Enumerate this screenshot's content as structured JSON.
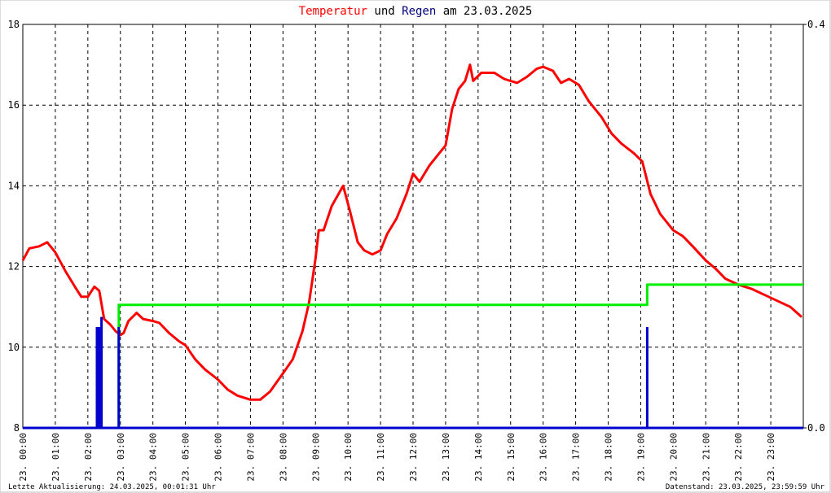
{
  "chart_data": {
    "type": "line",
    "title_parts": [
      {
        "text": "Temperatur",
        "color": "#ff0000"
      },
      {
        "text": "und",
        "color": "#000000"
      },
      {
        "text": "Regen",
        "color": "#000080"
      },
      {
        "text": "am 23.03.2025",
        "color": "#000000"
      }
    ],
    "footer_left": "Letzte Aktualisierung: 24.03.2025, 00:01:31 Uhr",
    "footer_right": "Datenstand: 23.03.2025, 23:59:59 Uhr",
    "xlim": [
      0,
      24
    ],
    "xticks": [
      {
        "value": 0,
        "label": "23. 00:00"
      },
      {
        "value": 1,
        "label": "23. 01:00"
      },
      {
        "value": 2,
        "label": "23. 02:00"
      },
      {
        "value": 3,
        "label": "23. 03:00"
      },
      {
        "value": 4,
        "label": "23. 04:00"
      },
      {
        "value": 5,
        "label": "23. 05:00"
      },
      {
        "value": 6,
        "label": "23. 06:00"
      },
      {
        "value": 7,
        "label": "23. 07:00"
      },
      {
        "value": 8,
        "label": "23. 08:00"
      },
      {
        "value": 9,
        "label": "23. 09:00"
      },
      {
        "value": 10,
        "label": "23. 10:00"
      },
      {
        "value": 11,
        "label": "23. 11:00"
      },
      {
        "value": 12,
        "label": "23. 12:00"
      },
      {
        "value": 13,
        "label": "23. 13:00"
      },
      {
        "value": 14,
        "label": "23. 14:00"
      },
      {
        "value": 15,
        "label": "23. 15:00"
      },
      {
        "value": 16,
        "label": "23. 16:00"
      },
      {
        "value": 17,
        "label": "23. 17:00"
      },
      {
        "value": 18,
        "label": "23. 18:00"
      },
      {
        "value": 19,
        "label": "23. 19:00"
      },
      {
        "value": 20,
        "label": "23. 20:00"
      },
      {
        "value": 21,
        "label": "23. 21:00"
      },
      {
        "value": 22,
        "label": "23. 22:00"
      },
      {
        "value": 23,
        "label": "23. 23:00"
      }
    ],
    "ylim": [
      8,
      18
    ],
    "yticks": [
      8,
      10,
      12,
      14,
      16,
      18
    ],
    "y2lim": [
      0,
      0.4
    ],
    "y2ticks": [
      {
        "value": 0,
        "label": "0.0"
      },
      {
        "value": 0.4,
        "label": "0.4"
      }
    ],
    "grid": true,
    "series": [
      {
        "color": "#ff0000",
        "type": "line",
        "x": [
          0,
          0.2,
          0.5,
          0.75,
          1,
          1.3,
          1.6,
          1.8,
          2,
          2.2,
          2.35,
          2.5,
          2.7,
          2.85,
          3,
          3.1,
          3.25,
          3.5,
          3.7,
          4,
          4.2,
          4.5,
          4.8,
          5,
          5.3,
          5.6,
          6,
          6.3,
          6.6,
          7,
          7.3,
          7.6,
          8,
          8.3,
          8.6,
          8.8,
          9,
          9.1,
          9.25,
          9.5,
          9.85,
          10.05,
          10.3,
          10.5,
          10.75,
          11,
          11.2,
          11.5,
          11.8,
          12,
          12.2,
          12.5,
          12.8,
          13,
          13.2,
          13.4,
          13.6,
          13.75,
          13.85,
          14.1,
          14.5,
          14.8,
          15.2,
          15.5,
          15.8,
          16,
          16.3,
          16.55,
          16.8,
          17.1,
          17.4,
          17.8,
          18.1,
          18.4,
          18.8,
          19.05,
          19.3,
          19.6,
          20,
          20.3,
          20.6,
          21,
          21.3,
          21.6,
          22,
          22.4,
          22.8,
          23.2,
          23.6,
          23.95
        ],
        "values": [
          12.15,
          12.45,
          12.5,
          12.6,
          12.35,
          11.9,
          11.5,
          11.25,
          11.25,
          11.5,
          11.4,
          10.7,
          10.55,
          10.4,
          10.3,
          10.35,
          10.65,
          10.85,
          10.7,
          10.65,
          10.6,
          10.35,
          10.15,
          10.05,
          9.7,
          9.45,
          9.2,
          8.95,
          8.8,
          8.7,
          8.7,
          8.9,
          9.35,
          9.7,
          10.4,
          11.1,
          12.2,
          12.9,
          12.9,
          13.5,
          14.0,
          13.4,
          12.6,
          12.4,
          12.3,
          12.4,
          12.8,
          13.2,
          13.8,
          14.3,
          14.1,
          14.5,
          14.8,
          15.0,
          15.9,
          16.4,
          16.6,
          17.0,
          16.6,
          16.8,
          16.8,
          16.65,
          16.55,
          16.7,
          16.9,
          16.95,
          16.85,
          16.55,
          16.65,
          16.5,
          16.1,
          15.7,
          15.3,
          15.05,
          14.8,
          14.6,
          13.8,
          13.3,
          12.9,
          12.75,
          12.5,
          12.15,
          11.95,
          11.7,
          11.55,
          11.45,
          11.3,
          11.15,
          11.0,
          10.75
        ]
      },
      {
        "color": "#00ee00",
        "type": "line",
        "axis": "y2",
        "x": [
          0,
          2.95,
          2.95,
          19.2,
          19.2,
          24
        ],
        "values": [
          0,
          0,
          0.122,
          0.122,
          0.142,
          0.142
        ]
      },
      {
        "color": "#0000cc",
        "type": "bar",
        "axis": "y2",
        "x": [
          2.28,
          2.35,
          2.42,
          2.95,
          19.2
        ],
        "values": [
          0.1,
          0.1,
          0.11,
          0.1,
          0.1
        ]
      }
    ]
  }
}
